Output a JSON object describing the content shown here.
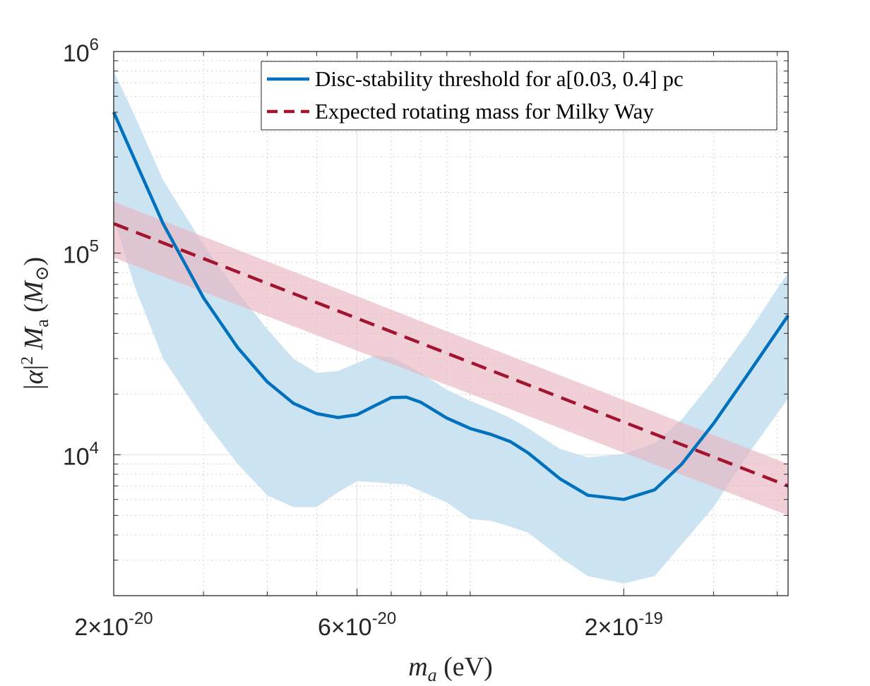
{
  "colors": {
    "threshold": "#0072BD",
    "threshold_band": "#c9e2f1",
    "milky_way": "#A2142F",
    "milky_way_band": "#e8b6c0",
    "grid": "#dcdcdc",
    "axes": "#262626"
  },
  "chart_data": {
    "type": "line",
    "xscale": "log",
    "yscale": "log",
    "xlim": [
      2e-20,
      4.2e-19
    ],
    "ylim": [
      2000,
      1000000
    ],
    "xlabel": "m_a (eV)",
    "ylabel": "|α|² M_a (M_⊙)",
    "xticks": [
      {
        "value": 2e-20,
        "coef": "2",
        "exp": "-20"
      },
      {
        "value": 6e-20,
        "coef": "6",
        "exp": "-20"
      },
      {
        "value": 2e-19,
        "coef": "2",
        "exp": "-19"
      }
    ],
    "yticks": [
      {
        "value": 10000,
        "exp": "4"
      },
      {
        "value": 100000,
        "exp": "5"
      },
      {
        "value": 1000000,
        "exp": "6"
      }
    ],
    "grid": true,
    "legend": {
      "placement": "top-right",
      "entries": [
        {
          "text": "Disc-stability threshold for a[0.03, 0.4] pc",
          "style": "solid"
        },
        {
          "text": "Expected rotating mass for Milky Way",
          "style": "dashed"
        }
      ]
    },
    "series": [
      {
        "name": "Disc-stability threshold",
        "x": [
          2e-20,
          2.2e-20,
          2.5e-20,
          3e-20,
          3.5e-20,
          4e-20,
          4.5e-20,
          5e-20,
          5.5e-20,
          6e-20,
          6.5e-20,
          7e-20,
          7.5e-20,
          8e-20,
          9e-20,
          1e-19,
          1.1e-19,
          1.2e-19,
          1.3e-19,
          1.5e-19,
          1.7e-19,
          2e-19,
          2.3e-19,
          2.6e-19,
          3e-19,
          3.5e-19,
          4.2e-19
        ],
        "y": [
          500000,
          290000,
          140000,
          60000,
          34000,
          23000,
          18000,
          16000,
          15300,
          15800,
          17500,
          19200,
          19300,
          18200,
          15200,
          13500,
          12600,
          11600,
          10200,
          7600,
          6300,
          6000,
          6700,
          9000,
          14300,
          25000,
          49000
        ]
      },
      {
        "name": "Disc-stability band upper",
        "x": [
          2e-20,
          2.2e-20,
          2.5e-20,
          3e-20,
          3.5e-20,
          4e-20,
          4.5e-20,
          5e-20,
          5.5e-20,
          6e-20,
          6.5e-20,
          7e-20,
          7.5e-20,
          8e-20,
          9e-20,
          1e-19,
          1.1e-19,
          1.2e-19,
          1.3e-19,
          1.5e-19,
          1.7e-19,
          2e-19,
          2.3e-19,
          2.6e-19,
          3e-19,
          3.5e-19,
          4.2e-19
        ],
        "y": [
          800000,
          480000,
          230000,
          110000,
          64000,
          42000,
          30000,
          25500,
          26000,
          28500,
          31000,
          30500,
          28000,
          25500,
          21000,
          18500,
          16800,
          15200,
          13500,
          10700,
          9700,
          10100,
          11400,
          15000,
          23500,
          40000,
          80000
        ]
      },
      {
        "name": "Disc-stability band lower",
        "x": [
          2e-20,
          2.2e-20,
          2.5e-20,
          3e-20,
          3.5e-20,
          4e-20,
          4.5e-20,
          5e-20,
          5.5e-20,
          6e-20,
          6.5e-20,
          7e-20,
          7.5e-20,
          8e-20,
          9e-20,
          1e-19,
          1.1e-19,
          1.2e-19,
          1.3e-19,
          1.5e-19,
          1.7e-19,
          2e-19,
          2.3e-19,
          2.6e-19,
          3e-19,
          3.5e-19,
          4.2e-19
        ],
        "y": [
          150000,
          68000,
          30000,
          15000,
          9000,
          6300,
          5500,
          5500,
          6500,
          7400,
          7300,
          7200,
          7100,
          6600,
          5800,
          4800,
          4700,
          4400,
          4100,
          3100,
          2500,
          2300,
          2500,
          3600,
          5500,
          10000,
          19000
        ]
      },
      {
        "name": "Expected rotating mass for Milky Way",
        "x": [
          2e-20,
          4.2e-19
        ],
        "y": [
          140000,
          7000
        ]
      },
      {
        "name": "Milky Way band upper",
        "x": [
          2e-20,
          4.2e-19
        ],
        "y": [
          180000,
          9000
        ]
      },
      {
        "name": "Milky Way band lower",
        "x": [
          2e-20,
          4.2e-19
        ],
        "y": [
          95000,
          5000
        ]
      }
    ]
  }
}
